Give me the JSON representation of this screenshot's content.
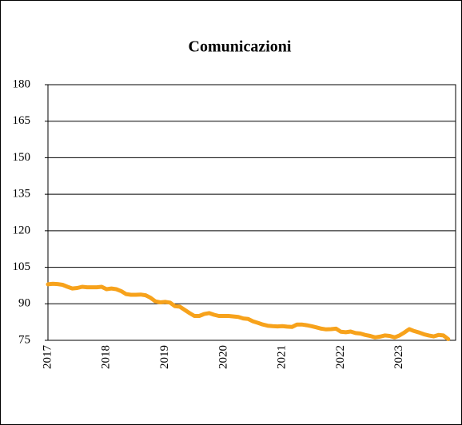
{
  "chart_data": {
    "type": "line",
    "title": "Comunicazioni",
    "categories": [
      "2017",
      null,
      null,
      null,
      null,
      null,
      null,
      null,
      null,
      null,
      null,
      null,
      "2018",
      null,
      null,
      null,
      null,
      null,
      null,
      null,
      null,
      null,
      null,
      null,
      "2019",
      null,
      null,
      null,
      null,
      null,
      null,
      null,
      null,
      null,
      null,
      null,
      "2020",
      null,
      null,
      null,
      null,
      null,
      null,
      null,
      null,
      null,
      null,
      null,
      "2021",
      null,
      null,
      null,
      null,
      null,
      null,
      null,
      null,
      null,
      null,
      null,
      "2022",
      null,
      null,
      null,
      null,
      null,
      null,
      null,
      null,
      null,
      null,
      null,
      "2023",
      null,
      null,
      null,
      null,
      null,
      null,
      null,
      null,
      null,
      null
    ],
    "values": [
      98,
      98.2,
      98.1,
      97.8,
      97,
      96.3,
      96.5,
      97,
      96.8,
      96.8,
      96.8,
      97,
      96,
      96.3,
      96,
      95.2,
      94,
      93.7,
      93.7,
      93.8,
      93.5,
      92.5,
      91,
      90.6,
      90.8,
      90.5,
      89,
      88.8,
      87.5,
      86.2,
      85,
      85,
      85.8,
      86.2,
      85.5,
      85,
      85,
      85,
      84.8,
      84.6,
      84,
      83.8,
      82.8,
      82.2,
      81.5,
      81,
      80.8,
      80.7,
      80.8,
      80.6,
      80.5,
      81.5,
      81.5,
      81.2,
      80.8,
      80.3,
      79.8,
      79.5,
      79.6,
      79.8,
      78.5,
      78.3,
      78.6,
      78,
      77.8,
      77.2,
      76.8,
      76.2,
      76.5,
      77,
      76.8,
      76.2,
      77,
      78.2,
      79.6,
      78.8,
      78.2,
      77.5,
      77,
      76.6,
      77.2,
      77,
      75.5
    ],
    "color": "#f7a21b",
    "ylim": [
      75,
      180
    ],
    "yticks": [
      75,
      90,
      105,
      120,
      135,
      150,
      165,
      180
    ],
    "grid": true
  }
}
